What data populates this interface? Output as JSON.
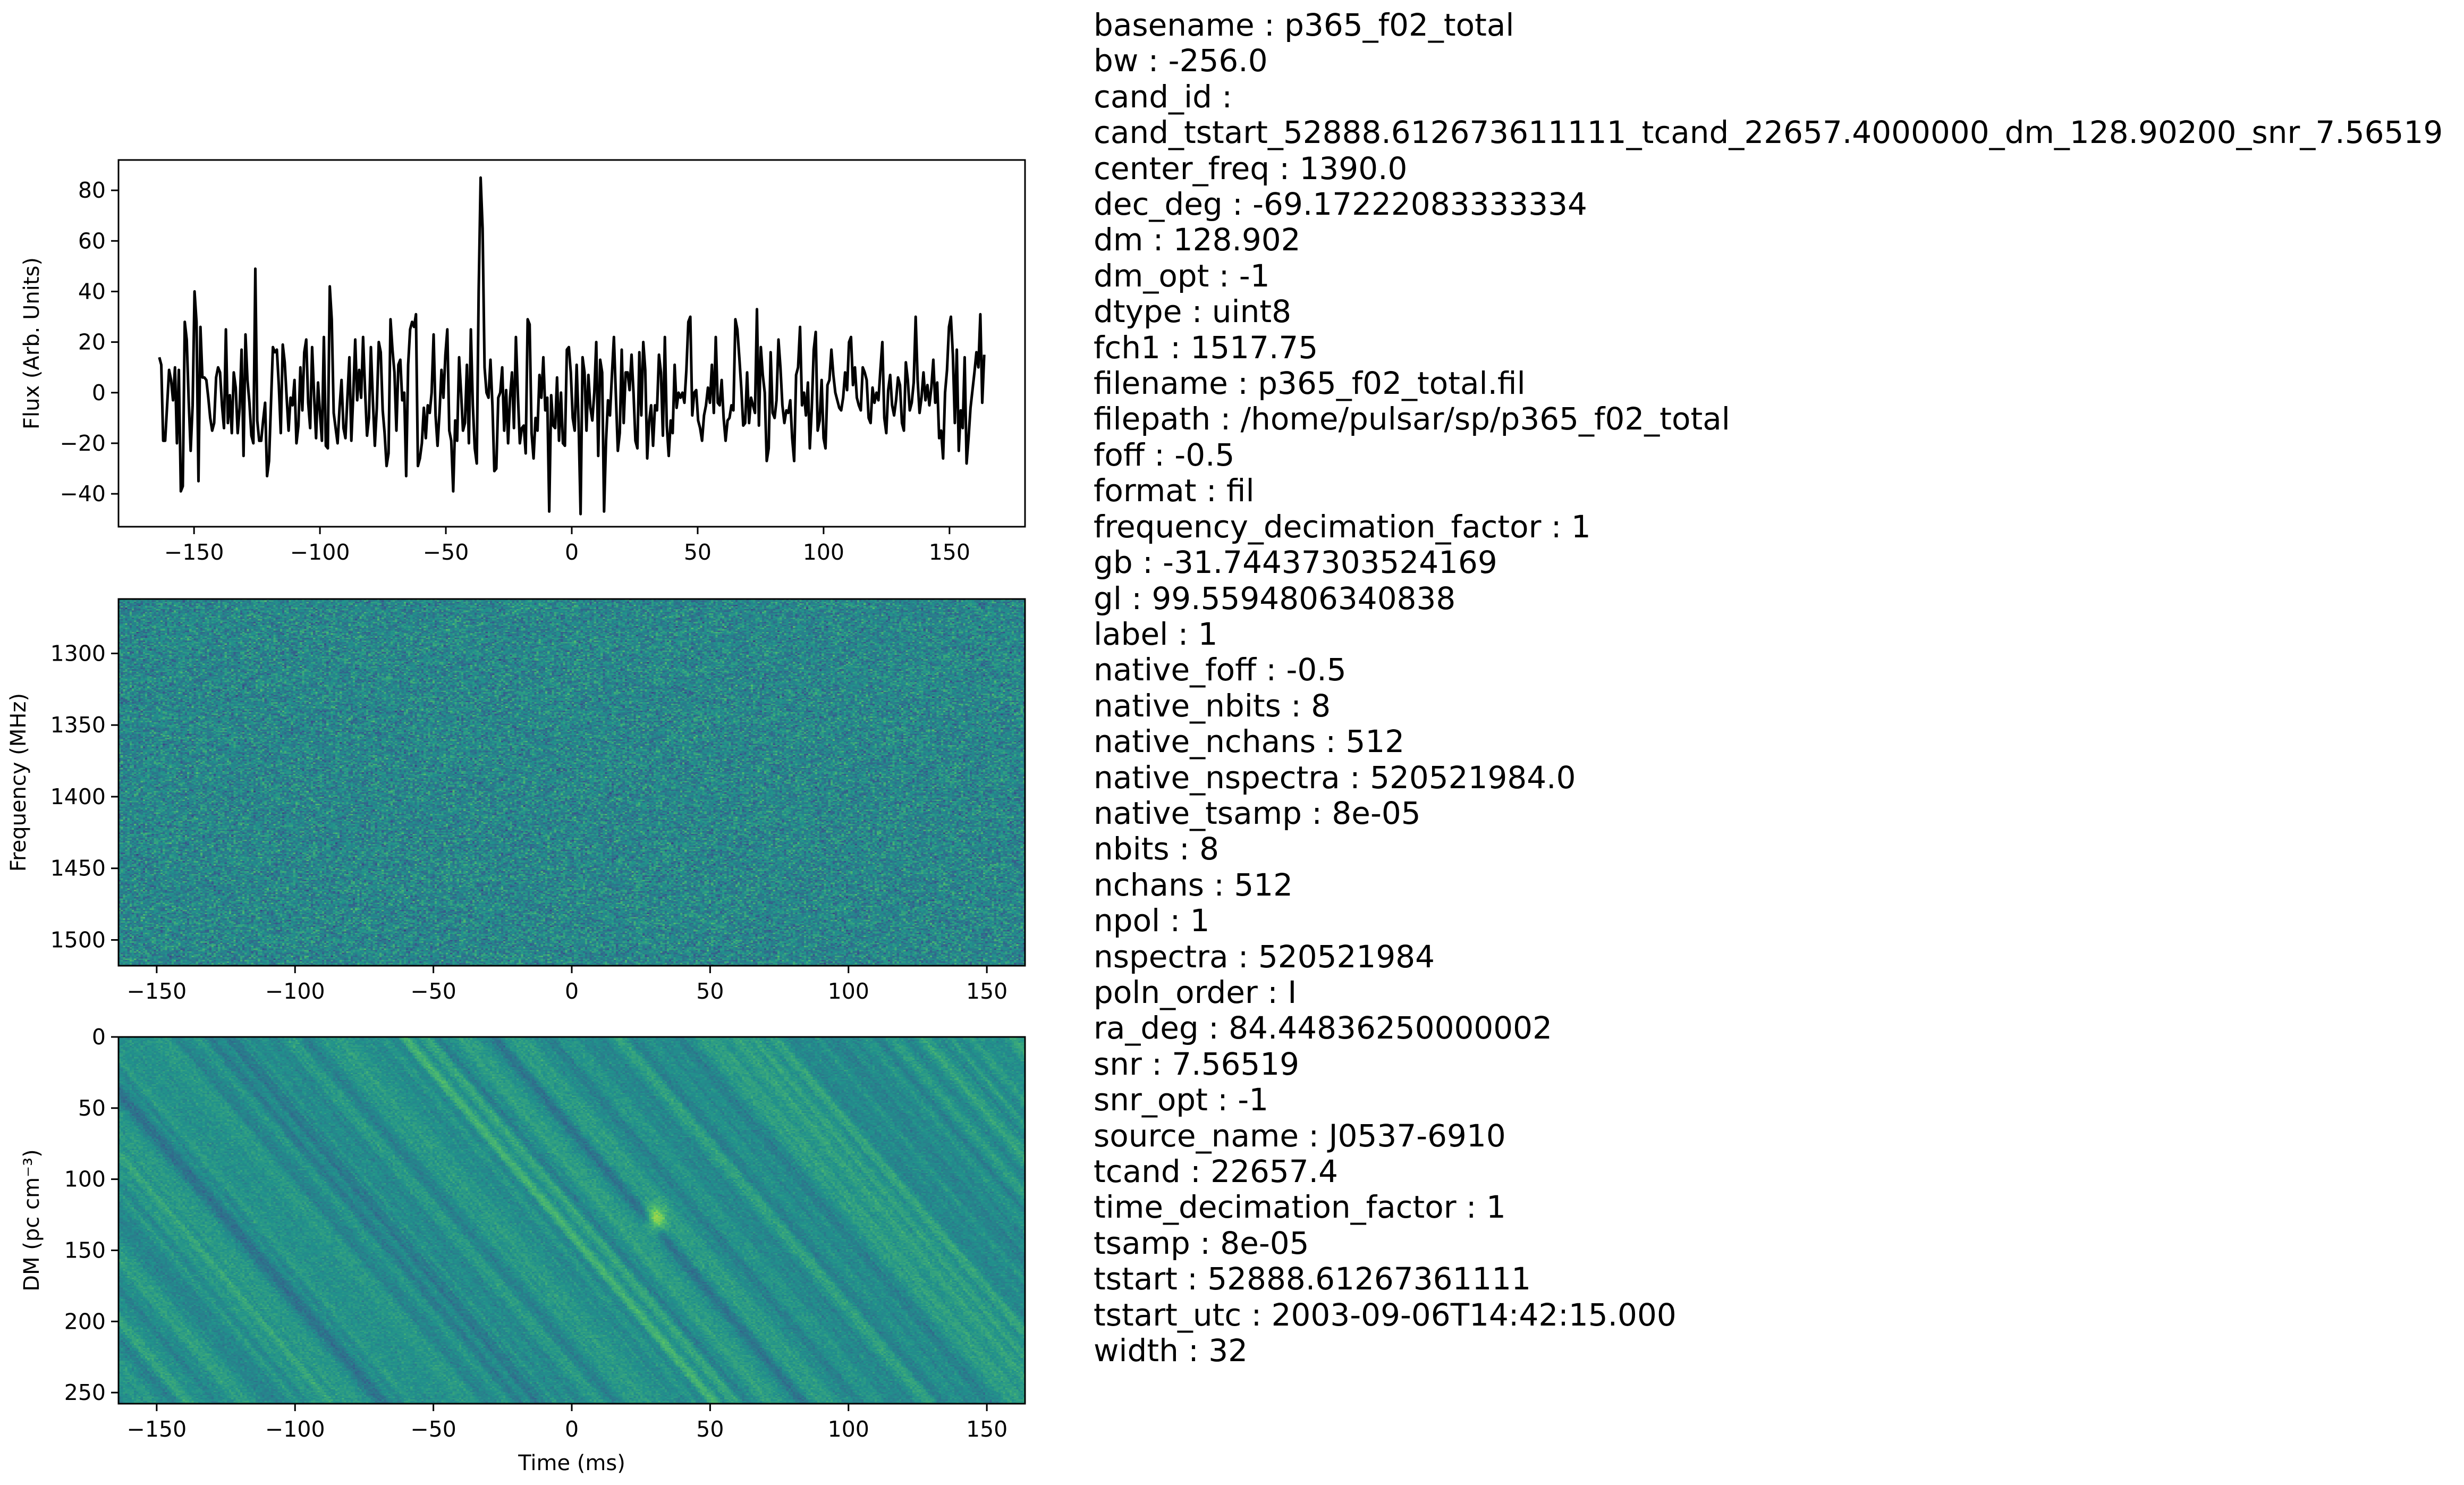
{
  "chart_data": [
    {
      "type": "line",
      "title": "",
      "xlabel": "",
      "ylabel": "Flux (Arb. Units)",
      "xlim": [
        -180,
        180
      ],
      "ylim": [
        -53,
        92
      ],
      "xticks": [
        -150,
        -100,
        -50,
        0,
        50,
        100,
        150
      ],
      "yticks": [
        -40,
        -20,
        0,
        20,
        40,
        60,
        80
      ],
      "grid": false,
      "line_color": "#000000",
      "x_start": -163.8,
      "x_end": 163.8,
      "y": [
        14,
        11,
        -19,
        -19,
        -5,
        9,
        5,
        -3,
        10,
        -20,
        9,
        -39,
        -37,
        28,
        21,
        -3,
        -23,
        -5,
        40,
        28,
        -35,
        26,
        6,
        6,
        5,
        -2,
        -10,
        -15,
        -12,
        6,
        10,
        8,
        -5,
        -14,
        25,
        -12,
        -1,
        -16,
        8,
        2,
        -16,
        -6,
        17,
        -25,
        23,
        5,
        -4,
        -17,
        -20,
        49,
        -11,
        -19,
        -19,
        -11,
        -4,
        -33,
        -27,
        -4,
        18,
        16,
        17,
        3,
        -16,
        19,
        12,
        -2,
        -15,
        -2,
        -5,
        5,
        -20,
        -13,
        10,
        -7,
        16,
        21,
        -4,
        -14,
        18,
        -1,
        -18,
        4,
        -8,
        -19,
        22,
        -21,
        -22,
        42,
        29,
        -8,
        -14,
        -20,
        -6,
        5,
        -14,
        -18,
        -2,
        14,
        -19,
        -1,
        21,
        -3,
        9,
        -2,
        22,
        1,
        -17,
        -10,
        18,
        -3,
        -21,
        -6,
        20,
        16,
        -7,
        -16,
        -29,
        -24,
        29,
        17,
        8,
        -15,
        11,
        13,
        -3,
        0,
        -33,
        11,
        25,
        28,
        26,
        31,
        -29,
        -26,
        -20,
        -6,
        -18,
        -5,
        -8,
        0,
        23,
        -9,
        -21,
        -8,
        9,
        -2,
        15,
        25,
        -15,
        -19,
        -39,
        -11,
        -19,
        14,
        0,
        -15,
        -12,
        11,
        -20,
        25,
        -5,
        -22,
        -28,
        40,
        85,
        65,
        10,
        0,
        -2,
        13,
        -5,
        -31,
        -30,
        -2,
        0,
        10,
        -15,
        1,
        -20,
        -2,
        8,
        -14,
        22,
        -1,
        -20,
        -14,
        -13,
        -24,
        29,
        27,
        -16,
        -26,
        -10,
        -15,
        7,
        -2,
        14,
        -7,
        -2,
        -47,
        -1,
        -13,
        -14,
        6,
        -19,
        0,
        -20,
        -21,
        17,
        18,
        8,
        -10,
        -15,
        11,
        -12,
        -48,
        14,
        8,
        -15,
        7,
        -6,
        -11,
        0,
        20,
        -25,
        13,
        8,
        -47,
        -19,
        -3,
        -9,
        7,
        22,
        -1,
        -23,
        -16,
        17,
        -12,
        8,
        8,
        1,
        15,
        0,
        -19,
        -22,
        16,
        -9,
        20,
        9,
        -26,
        -11,
        -5,
        -21,
        -5,
        -7,
        15,
        8,
        -17,
        22,
        -13,
        -25,
        -11,
        -16,
        11,
        -6,
        0,
        -2,
        0,
        -4,
        9,
        28,
        30,
        -9,
        0,
        1,
        -11,
        -14,
        -19,
        -9,
        -5,
        2,
        -4,
        11,
        -8,
        22,
        -4,
        -5,
        5,
        -10,
        -19,
        -11,
        -10,
        -5,
        -7,
        29,
        25,
        14,
        2,
        -13,
        -12,
        8,
        -12,
        -2,
        -5,
        -8,
        33,
        -13,
        18,
        7,
        0,
        -27,
        -22,
        16,
        -8,
        -10,
        -3,
        21,
        10,
        -5,
        -12,
        -7,
        -8,
        -3,
        -18,
        -27,
        7,
        10,
        26,
        -5,
        0,
        -9,
        4,
        -22,
        -6,
        17,
        24,
        -15,
        -11,
        5,
        -18,
        -22,
        3,
        5,
        17,
        7,
        0,
        -3,
        -6,
        -7,
        -2,
        8,
        1,
        20,
        22,
        3,
        10,
        -2,
        -5,
        -7,
        10,
        8,
        5,
        -10,
        -12,
        2,
        -4,
        0,
        -3,
        9,
        20,
        -10,
        -16,
        1,
        7,
        -5,
        -9,
        -3,
        6,
        3,
        -12,
        -15,
        12,
        5,
        -7,
        -4,
        4,
        30,
        5,
        -8,
        -2,
        8,
        -3,
        3,
        -5,
        2,
        13,
        -4,
        4,
        -18,
        -15,
        -26,
        0,
        9,
        26,
        30,
        15,
        -12,
        17,
        -23,
        -7,
        -14,
        14,
        -28,
        -18,
        -6,
        1,
        8,
        16,
        10,
        31,
        -4,
        15
      ]
    },
    {
      "type": "heatmap",
      "title": "",
      "xlabel": "",
      "ylabel": "Frequency (MHz)",
      "xlim": [
        -163.8,
        163.8
      ],
      "ylim": [
        1262,
        1518
      ],
      "y_inverted": true,
      "xticks": [
        -150,
        -100,
        -50,
        0,
        50,
        100,
        150
      ],
      "yticks": [
        1300,
        1350,
        1400,
        1450,
        1500
      ],
      "colormap": "viridis",
      "texture": "uncorrelated noise",
      "colors": [
        "#440154",
        "#3b528b",
        "#21918c",
        "#5ec962",
        "#fde725"
      ]
    },
    {
      "type": "heatmap",
      "title": "",
      "xlabel": "Time (ms)",
      "ylabel": "DM (pc cm⁻³)",
      "xlim": [
        -163.8,
        163.8
      ],
      "ylim": [
        0,
        257.8
      ],
      "y_inverted": true,
      "xticks": [
        -150,
        -100,
        -50,
        0,
        50,
        100,
        150
      ],
      "yticks": [
        0,
        50,
        100,
        150,
        200,
        250
      ],
      "colormap": "viridis",
      "texture": "diagonal dispersion streaks",
      "bright_spot": {
        "x": 30,
        "y": 128
      },
      "colors": [
        "#440154",
        "#3b528b",
        "#21918c",
        "#5ec962",
        "#fde725"
      ]
    }
  ],
  "metadata": [
    "basename : p365_f02_total",
    "bw : -256.0",
    "cand_id :",
    "cand_tstart_52888.612673611111_tcand_22657.4000000_dm_128.90200_snr_7.56519",
    "center_freq : 1390.0",
    "dec_deg : -69.17222083333334",
    "dm : 128.902",
    "dm_opt : -1",
    "dtype : uint8",
    "fch1 : 1517.75",
    "filename : p365_f02_total.fil",
    "filepath : /home/pulsar/sp/p365_f02_total",
    "foff : -0.5",
    "format : fil",
    "frequency_decimation_factor : 1",
    "gb : -31.74437303524169",
    "gl : 99.5594806340838",
    "label : 1",
    "native_foff : -0.5",
    "native_nbits : 8",
    "native_nchans : 512",
    "native_nspectra : 520521984.0",
    "native_tsamp : 8e-05",
    "nbits : 8",
    "nchans : 512",
    "npol : 1",
    "nspectra : 520521984",
    "poln_order : I",
    "ra_deg : 84.44836250000002",
    "snr : 7.56519",
    "snr_opt : -1",
    "source_name : J0537-6910",
    "tcand : 22657.4",
    "time_decimation_factor : 1",
    "tsamp : 8e-05",
    "tstart : 52888.61267361111",
    "tstart_utc : 2003-09-06T14:42:15.000",
    "width : 32"
  ]
}
